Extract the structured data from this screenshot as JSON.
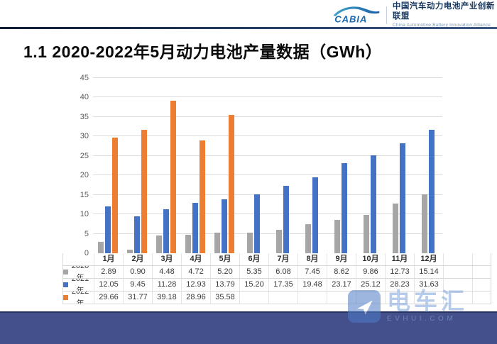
{
  "header": {
    "logo_text": "CABIA",
    "org_name_cn": "中国汽车动力电池产业创新联盟",
    "org_name_en": "China Automotive Battery Innovation Alliance"
  },
  "title": "1.1 2020-2022年5月动力电池产量数据（GWh）",
  "chart_data": {
    "type": "bar",
    "title": "2020-2022年5月动力电池产量数据（GWh）",
    "categories": [
      "1月",
      "2月",
      "3月",
      "4月",
      "5月",
      "6月",
      "7月",
      "8月",
      "9月",
      "10月",
      "11月",
      "12月"
    ],
    "series": [
      {
        "name": "2020年",
        "color": "#a6a6a6",
        "values": [
          2.89,
          0.9,
          4.48,
          4.72,
          5.2,
          5.35,
          6.08,
          7.45,
          8.62,
          9.86,
          12.73,
          15.14
        ]
      },
      {
        "name": "2021年",
        "color": "#4472c4",
        "values": [
          12.05,
          9.45,
          11.28,
          12.93,
          13.79,
          15.2,
          17.35,
          19.48,
          23.17,
          25.12,
          28.23,
          31.63
        ]
      },
      {
        "name": "2022年",
        "color": "#ed7d31",
        "values": [
          29.66,
          31.77,
          39.18,
          28.96,
          35.58,
          null,
          null,
          null,
          null,
          null,
          null,
          null
        ]
      }
    ],
    "ylim": [
      0,
      45
    ],
    "yticks": [
      0,
      5,
      10,
      15,
      20,
      25,
      30,
      35,
      40,
      45
    ],
    "grid": true,
    "legend_position": "table-rows-left",
    "data_table_shown": true
  },
  "watermark": {
    "name": "电车汇",
    "domain": "EVHUI.COM"
  },
  "colors": {
    "series_2020": "#a6a6a6",
    "series_2021": "#4472c4",
    "series_2022": "#ed7d31",
    "gridline": "#dcdcdc",
    "bottom_bar": "#44508c",
    "watermark_blue": "#7da2da"
  }
}
